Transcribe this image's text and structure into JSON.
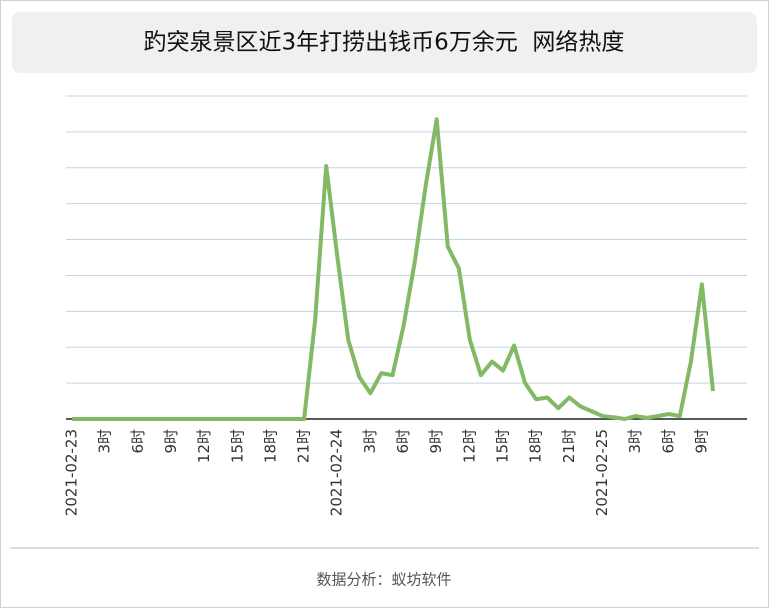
{
  "chart_data": {
    "type": "line",
    "title": "趵突泉景区近3年打捞出钱币6万余元  网络热度",
    "source": "数据分析：蚁坊软件",
    "categories": [
      "2021-02-23",
      null,
      null,
      "3时",
      null,
      null,
      "6时",
      null,
      null,
      "9时",
      null,
      null,
      "12时",
      null,
      null,
      "15时",
      null,
      null,
      "18时",
      null,
      null,
      "21时",
      null,
      null,
      "2021-02-24",
      null,
      null,
      "3时",
      null,
      null,
      "6时",
      null,
      null,
      "9时",
      null,
      null,
      "12时",
      null,
      null,
      "15时",
      null,
      null,
      "18时",
      null,
      null,
      "21时",
      null,
      null,
      "2021-02-25",
      null,
      null,
      "3时",
      null,
      null,
      "6时",
      null,
      null,
      "9时",
      null
    ],
    "values": [
      0,
      0,
      0,
      0,
      0,
      0,
      0,
      0,
      0,
      0,
      0,
      0,
      0,
      0,
      0,
      0,
      0,
      0,
      0,
      0,
      0,
      0,
      2.75,
      7.05,
      4.55,
      2.2,
      1.17,
      0.72,
      1.28,
      1.22,
      2.6,
      4.35,
      6.5,
      8.35,
      4.8,
      4.2,
      2.2,
      1.22,
      1.6,
      1.35,
      2.05,
      1.0,
      0.55,
      0.6,
      0.3,
      0.6,
      0.35,
      0.22,
      0.08,
      0.05,
      0,
      0.08,
      0.03,
      0.08,
      0.14,
      0.08,
      1.6,
      3.75,
      0.78
    ],
    "color": "#82b964",
    "ylim": [
      0,
      9
    ],
    "yticks": [
      0,
      1,
      2,
      3,
      4,
      5,
      6,
      7,
      8,
      9
    ],
    "grid": true
  }
}
